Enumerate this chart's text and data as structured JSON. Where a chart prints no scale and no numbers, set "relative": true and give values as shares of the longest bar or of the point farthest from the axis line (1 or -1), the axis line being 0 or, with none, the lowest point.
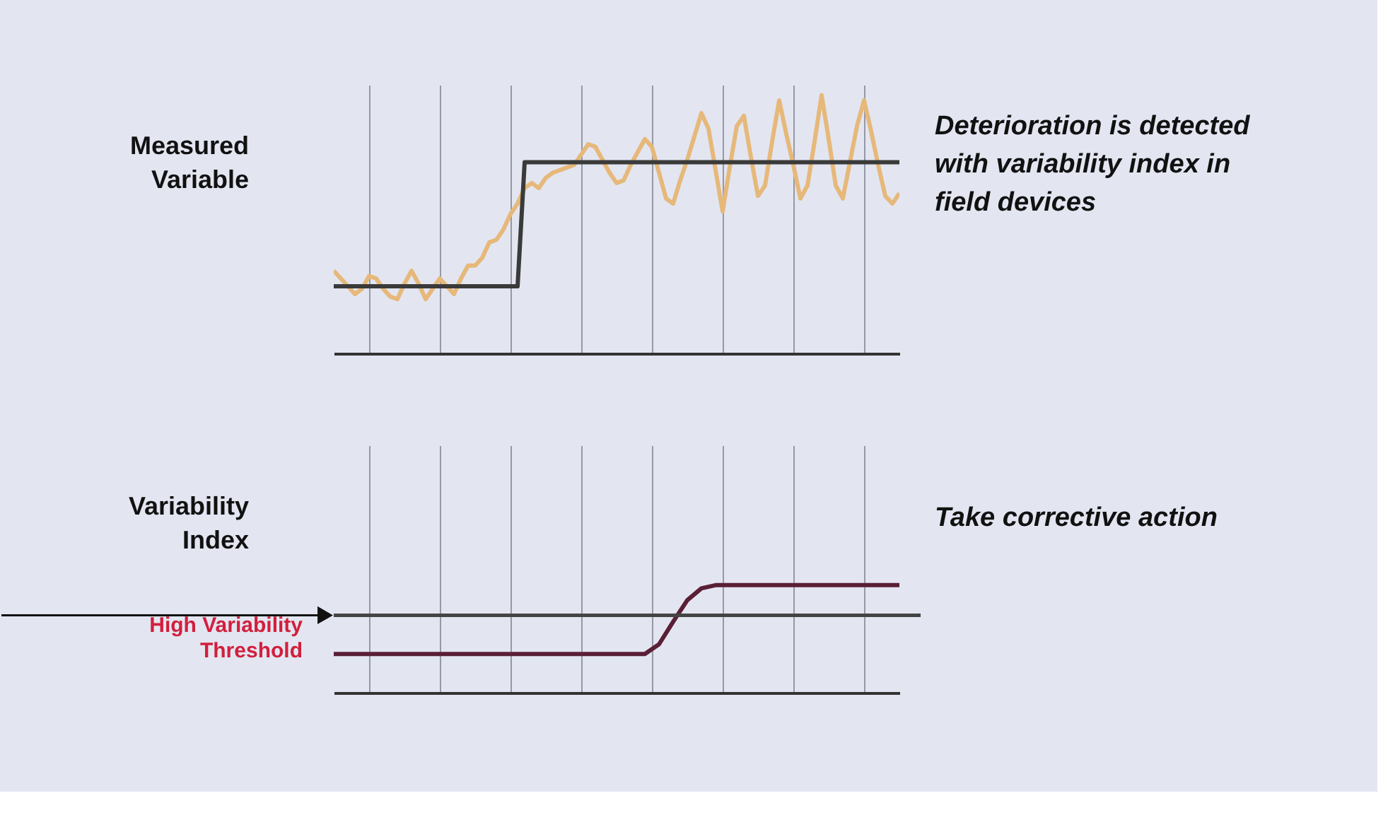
{
  "chart_data": [
    {
      "type": "line",
      "ylabel": "Measured Variable",
      "relative": true,
      "categories": [
        null,
        null,
        null,
        null,
        null,
        null,
        null,
        null,
        null,
        null,
        null,
        null,
        null,
        null,
        null,
        null,
        null,
        null,
        null,
        null,
        null,
        null,
        null,
        null,
        null,
        null,
        null,
        null,
        null,
        null,
        null,
        null,
        null,
        null,
        null,
        null,
        null,
        null,
        null,
        null,
        null,
        null,
        null,
        null,
        null,
        null,
        null,
        null,
        null,
        null,
        null,
        null,
        null,
        null,
        null,
        null,
        null,
        null,
        null,
        null,
        null,
        null,
        null,
        null,
        null,
        null,
        null,
        null,
        null,
        null,
        null,
        null,
        null,
        null,
        null,
        null,
        null,
        null,
        null,
        null,
        null
      ],
      "tick_labels": false,
      "grid": "x",
      "series": [
        {
          "color": "#e6b87a",
          "values": [
            0.32,
            0.29,
            0.26,
            0.23,
            0.25,
            0.3,
            0.29,
            0.25,
            0.22,
            0.21,
            0.27,
            0.32,
            0.27,
            0.21,
            0.25,
            0.29,
            0.26,
            0.23,
            0.29,
            0.34,
            0.34,
            0.37,
            0.43,
            0.44,
            0.48,
            0.54,
            0.58,
            0.64,
            0.66,
            0.64,
            0.68,
            0.7,
            0.71,
            0.72,
            0.73,
            0.77,
            0.81,
            0.8,
            0.75,
            0.7,
            0.66,
            0.67,
            0.73,
            0.78,
            0.83,
            0.8,
            0.7,
            0.6,
            0.58,
            0.67,
            0.75,
            0.84,
            0.93,
            0.87,
            0.71,
            0.55,
            0.72,
            0.88,
            0.92,
            0.76,
            0.61,
            0.65,
            0.82,
            0.98,
            0.85,
            0.73,
            0.6,
            0.65,
            0.82,
            1.0,
            0.83,
            0.65,
            0.6,
            0.74,
            0.88,
            0.98,
            0.86,
            0.73,
            0.61,
            0.58,
            0.62
          ]
        },
        {
          "color": "#3a3a3a",
          "values": [
            0.26,
            0.26,
            0.26,
            0.26,
            0.26,
            0.26,
            0.26,
            0.26,
            0.26,
            0.26,
            0.26,
            0.26,
            0.26,
            0.26,
            0.26,
            0.26,
            0.26,
            0.26,
            0.26,
            0.26,
            0.26,
            0.26,
            0.26,
            0.26,
            0.26,
            0.26,
            0.26,
            0.74,
            0.74,
            0.74,
            0.74,
            0.74,
            0.74,
            0.74,
            0.74,
            0.74,
            0.74,
            0.74,
            0.74,
            0.74,
            0.74,
            0.74,
            0.74,
            0.74,
            0.74,
            0.74,
            0.74,
            0.74,
            0.74,
            0.74,
            0.74,
            0.74,
            0.74,
            0.74,
            0.74,
            0.74,
            0.74,
            0.74,
            0.74,
            0.74,
            0.74,
            0.74,
            0.74,
            0.74,
            0.74,
            0.74,
            0.74,
            0.74,
            0.74,
            0.74,
            0.74,
            0.74,
            0.74,
            0.74,
            0.74,
            0.74,
            0.74,
            0.74,
            0.74,
            0.74,
            0.74
          ]
        }
      ],
      "annotations": [
        "Deterioration is detected with variability index in field devices"
      ]
    },
    {
      "type": "line",
      "ylabel": "Variability Index",
      "relative": true,
      "categories": [
        null,
        null,
        null,
        null,
        null,
        null,
        null,
        null,
        null,
        null,
        null,
        null,
        null,
        null,
        null,
        null,
        null,
        null,
        null,
        null,
        null,
        null,
        null,
        null,
        null,
        null,
        null,
        null,
        null,
        null,
        null,
        null,
        null,
        null,
        null,
        null,
        null,
        null,
        null,
        null,
        null
      ],
      "tick_labels": false,
      "grid": "x",
      "series": [
        {
          "color": "#5a1f35",
          "values": [
            0.36,
            0.36,
            0.36,
            0.36,
            0.36,
            0.36,
            0.36,
            0.36,
            0.36,
            0.36,
            0.36,
            0.36,
            0.36,
            0.36,
            0.36,
            0.36,
            0.36,
            0.36,
            0.36,
            0.36,
            0.36,
            0.36,
            0.36,
            0.45,
            0.66,
            0.86,
            0.97,
            1.0,
            1.0,
            1.0,
            1.0,
            1.0,
            1.0,
            1.0,
            1.0,
            1.0,
            1.0,
            1.0,
            1.0,
            1.0,
            1.0
          ]
        }
      ],
      "ref_lines": [
        {
          "axis": "y",
          "value": 0.72,
          "label": "High Variability Threshold",
          "color": "#444444"
        }
      ],
      "annotations": [
        "Take corrective action"
      ]
    }
  ]
}
